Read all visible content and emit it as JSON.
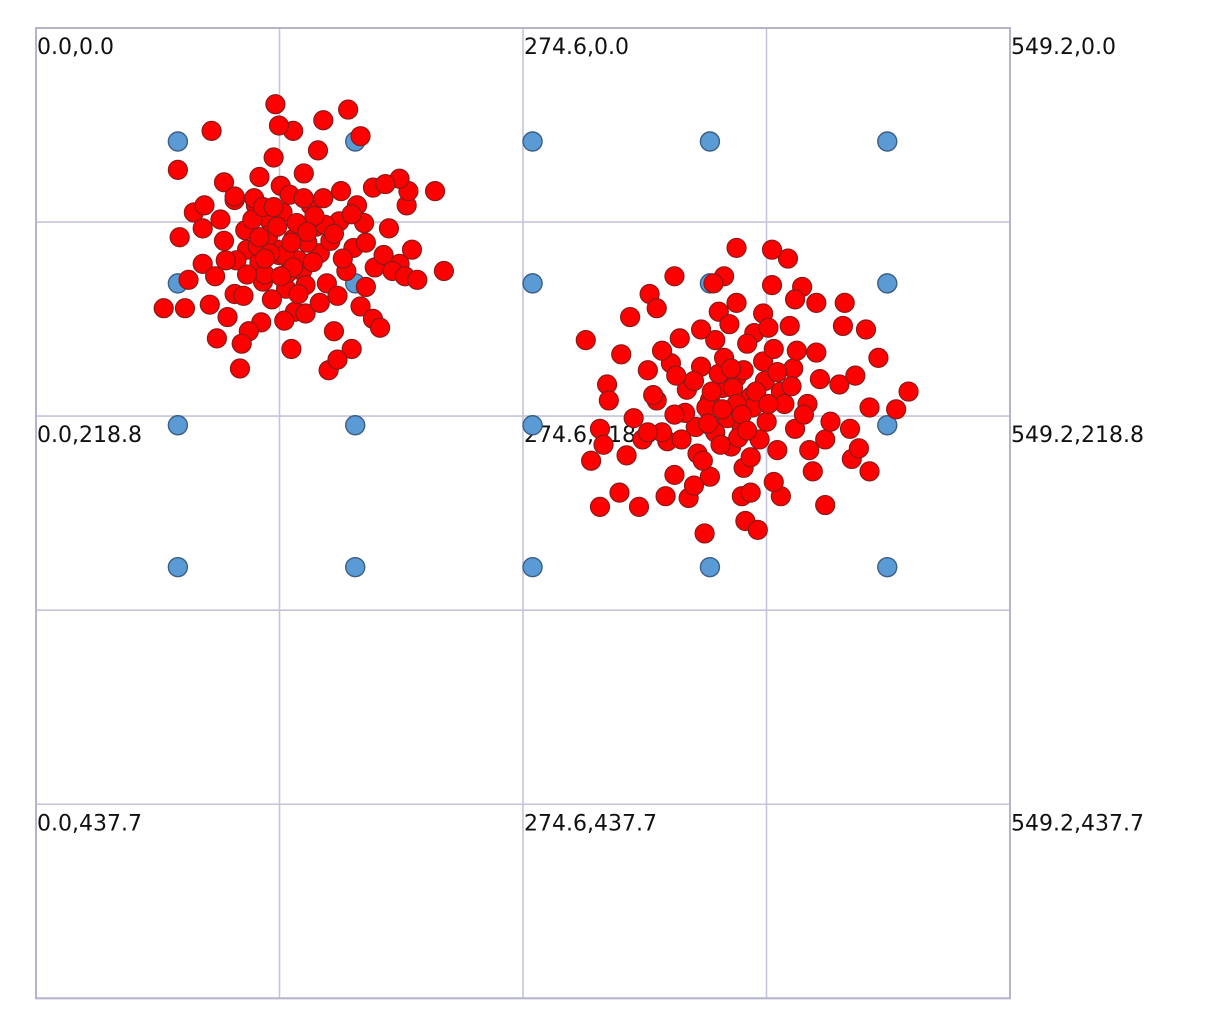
{
  "colors": {
    "background": "#ffffff",
    "grid": "#c4c4dc",
    "reference_point": "#5b9bd5",
    "sample_point": "#ff0000"
  },
  "coordinate_labels": [
    {
      "text": "0.0,0.0",
      "x": 0.0,
      "y": 0.0
    },
    {
      "text": "274.6,0.0",
      "x": 274.6,
      "y": 0.0
    },
    {
      "text": "549.2,0.0",
      "x": 549.2,
      "y": 0.0
    },
    {
      "text": "0.0,218.8",
      "x": 0.0,
      "y": 218.8
    },
    {
      "text": "274.6,218.8",
      "x": 274.6,
      "y": 218.8
    },
    {
      "text": "549.2,218.8",
      "x": 549.2,
      "y": 218.8
    },
    {
      "text": "0.0,437.7",
      "x": 0.0,
      "y": 437.7
    },
    {
      "text": "274.6,437.7",
      "x": 274.6,
      "y": 437.7
    },
    {
      "text": "549.2,437.7",
      "x": 549.2,
      "y": 437.7
    }
  ],
  "chart_data": {
    "type": "scatter",
    "title": "",
    "xlabel": "",
    "ylabel": "",
    "y_axis_direction": "down",
    "xlim": [
      0,
      549.2
    ],
    "ylim": [
      0,
      547.1
    ],
    "grid": true,
    "grid_x": [
      0,
      137.3,
      274.6,
      411.9,
      549.2
    ],
    "grid_y": [
      0,
      109.4,
      218.8,
      328.3,
      437.7,
      547.1
    ],
    "series": [
      {
        "color": "#5b9bd5",
        "points": [
          [
            80,
            64
          ],
          [
            180,
            64
          ],
          [
            280,
            64
          ],
          [
            380,
            64
          ],
          [
            480,
            64
          ],
          [
            80,
            144
          ],
          [
            180,
            144
          ],
          [
            280,
            144
          ],
          [
            380,
            144
          ],
          [
            480,
            144
          ],
          [
            80,
            224
          ],
          [
            180,
            224
          ],
          [
            280,
            224
          ],
          [
            380,
            224
          ],
          [
            480,
            224
          ],
          [
            80,
            304
          ],
          [
            180,
            304
          ],
          [
            280,
            304
          ],
          [
            380,
            304
          ],
          [
            480,
            304
          ]
        ]
      },
      {
        "color": "#ff0000",
        "points": [
          [
            137,
            128
          ],
          [
            145,
            119
          ],
          [
            132,
            109
          ],
          [
            150,
            137
          ],
          [
            124,
            100
          ],
          [
            160,
            127
          ],
          [
            141,
            147
          ],
          [
            119,
            125
          ],
          [
            171,
            109
          ],
          [
            128,
            143
          ],
          [
            155,
            100
          ],
          [
            106,
            120
          ],
          [
            146,
            160
          ],
          [
            164,
            144
          ],
          [
            94,
            133
          ],
          [
            179,
            124
          ],
          [
            138,
            89
          ],
          [
            112,
            150
          ],
          [
            172,
            92
          ],
          [
            89,
            104
          ],
          [
            191,
            135
          ],
          [
            151,
            82
          ],
          [
            127,
            166
          ],
          [
            183,
            157
          ],
          [
            98,
            156
          ],
          [
            199,
            113
          ],
          [
            134,
            73
          ],
          [
            120,
            171
          ],
          [
            168,
            171
          ],
          [
            86,
            142
          ],
          [
            205,
            133
          ],
          [
            159,
            69
          ],
          [
            106,
            87
          ],
          [
            144,
            181
          ],
          [
            190,
            90
          ],
          [
            81,
            118
          ],
          [
            212,
            125
          ],
          [
            116,
            178
          ],
          [
            178,
            181
          ],
          [
            136,
            125
          ],
          [
            148,
            131
          ],
          [
            131,
            117
          ],
          [
            153,
            121
          ],
          [
            142,
            138
          ],
          [
            126,
            132
          ],
          [
            158,
            112
          ],
          [
            139,
            104
          ],
          [
            166,
            120
          ],
          [
            118,
            114
          ],
          [
            129,
            139
          ],
          [
            147,
            110
          ],
          [
            123,
            96
          ],
          [
            104,
            108
          ],
          [
            185,
            110
          ],
          [
            162,
            96
          ],
          [
            112,
            97
          ],
          [
            186,
            146
          ],
          [
            94,
            113
          ],
          [
            196,
            128
          ],
          [
            133,
            153
          ],
          [
            175,
            137
          ],
          [
            101,
            140
          ],
          [
            113,
            131
          ],
          [
            170,
            151
          ],
          [
            152,
            145
          ],
          [
            143,
            94
          ],
          [
            125,
            123
          ],
          [
            136,
            112
          ],
          [
            156,
            132
          ],
          [
            140,
            128
          ],
          [
            132,
            127
          ],
          [
            145,
            135
          ],
          [
            163,
            111
          ],
          [
            122,
            108
          ],
          [
            108,
            163
          ],
          [
            181,
            100
          ],
          [
            126,
            84
          ],
          [
            190,
            164
          ],
          [
            95,
            100
          ],
          [
            201,
            137
          ],
          [
            145,
            58
          ],
          [
            115,
            192
          ],
          [
            165,
            193
          ],
          [
            84,
            158
          ],
          [
            209,
            100
          ],
          [
            72,
            158
          ],
          [
            135,
            43
          ],
          [
            176,
            46
          ],
          [
            162,
            52
          ],
          [
            99,
            58
          ],
          [
            170,
            187
          ],
          [
            140,
            165
          ],
          [
            102,
            175
          ],
          [
            194,
            169
          ],
          [
            112,
            95
          ],
          [
            137,
            55
          ],
          [
            183,
            61
          ],
          [
            208,
            140
          ],
          [
            152,
            161
          ],
          [
            173,
            130
          ],
          [
            210,
            92
          ],
          [
            80,
            80
          ],
          [
            230,
            137
          ],
          [
            215,
            142
          ],
          [
            205,
            85
          ],
          [
            197,
            88
          ],
          [
            225,
            92
          ],
          [
            128,
            101
          ],
          [
            151,
            96
          ],
          [
            119,
            139
          ],
          [
            138,
            140
          ],
          [
            168,
            116
          ],
          [
            107,
            131
          ],
          [
            157,
            106
          ],
          [
            178,
            105
          ],
          [
            148,
            150
          ],
          [
            126,
            118
          ],
          [
            117,
            151
          ],
          [
            134,
            101
          ],
          [
            186,
            121
          ],
          [
            160,
            155
          ],
          [
            144,
            121
          ],
          [
            129,
            130
          ],
          [
            153,
            115
          ],
          [
            387,
            203
          ],
          [
            395,
            197
          ],
          [
            380,
            210
          ],
          [
            403,
            208
          ],
          [
            375,
            191
          ],
          [
            410,
            188
          ],
          [
            390,
            220
          ],
          [
            367,
            204
          ],
          [
            420,
            205
          ],
          [
            383,
            176
          ],
          [
            398,
            226
          ],
          [
            358,
            189
          ],
          [
            412,
            222
          ],
          [
            427,
            192
          ],
          [
            372,
            225
          ],
          [
            405,
            172
          ],
          [
            350,
            210
          ],
          [
            435,
            212
          ],
          [
            392,
            236
          ],
          [
            363,
            175
          ],
          [
            418,
            238
          ],
          [
            440,
            183
          ],
          [
            345,
            193
          ],
          [
            385,
            160
          ],
          [
            428,
            226
          ],
          [
            337,
            220
          ],
          [
            373,
            240
          ],
          [
            453,
            201
          ],
          [
            410,
            161
          ],
          [
            356,
            233
          ],
          [
            445,
            232
          ],
          [
            330,
            184
          ],
          [
            399,
            248
          ],
          [
            425,
            168
          ],
          [
            342,
            232
          ],
          [
            462,
            196
          ],
          [
            380,
            253
          ],
          [
            438,
            250
          ],
          [
            322,
            201
          ],
          [
            415,
            145
          ],
          [
            360,
            252
          ],
          [
            470,
            214
          ],
          [
            333,
            241
          ],
          [
            398,
            264
          ],
          [
            455,
            168
          ],
          [
            318,
            226
          ],
          [
            388,
            140
          ],
          [
            440,
            155
          ],
          [
            346,
            150
          ],
          [
            475,
            186
          ],
          [
            355,
            264
          ],
          [
            420,
            264
          ],
          [
            310,
            176
          ],
          [
            395,
            124
          ],
          [
            460,
            243
          ],
          [
            335,
            163
          ],
          [
            368,
            265
          ],
          [
            445,
            269
          ],
          [
            313,
            244
          ],
          [
            485,
            215
          ],
          [
            400,
            278
          ],
          [
            350,
            158
          ],
          [
            432,
            146
          ],
          [
            382,
            144
          ],
          [
            468,
            170
          ],
          [
            329,
            262
          ],
          [
            470,
            250
          ],
          [
            424,
            130
          ],
          [
            340,
            270
          ],
          [
            407,
            283
          ],
          [
            377,
            285
          ],
          [
            456,
            155
          ],
          [
            318,
            270
          ],
          [
            492,
            205
          ],
          [
            385,
            195
          ],
          [
            393,
            203
          ],
          [
            378,
            214
          ],
          [
            399,
            193
          ],
          [
            404,
            214
          ],
          [
            388,
            186
          ],
          [
            411,
            199
          ],
          [
            371,
            199
          ],
          [
            396,
            231
          ],
          [
            416,
            181
          ],
          [
            366,
            217
          ],
          [
            401,
            178
          ],
          [
            426,
            202
          ],
          [
            383,
            228
          ],
          [
            361,
            196
          ],
          [
            408,
            232
          ],
          [
            433,
            218
          ],
          [
            418,
            194
          ],
          [
            375,
            170
          ],
          [
            391,
            167
          ],
          [
            353,
            228
          ],
          [
            436,
            238
          ],
          [
            403,
            242
          ],
          [
            448,
            222
          ],
          [
            360,
            218
          ],
          [
            422,
            212
          ],
          [
            376,
            244
          ],
          [
            429,
            182
          ],
          [
            364,
            232
          ],
          [
            413,
            169
          ],
          [
            395,
            212
          ],
          [
            381,
            205
          ],
          [
            398,
            218
          ],
          [
            387,
            215
          ],
          [
            406,
            205
          ],
          [
            392,
            192
          ],
          [
            379,
            223
          ],
          [
            401,
            227
          ],
          [
            413,
            212
          ],
          [
            386,
            235
          ],
          [
            353,
            182
          ],
          [
            348,
            207
          ],
          [
            416,
            256
          ],
          [
            371,
            258
          ],
          [
            442,
            198
          ],
          [
            459,
            226
          ],
          [
            323,
            210
          ],
          [
            395,
            155
          ],
          [
            464,
            237
          ],
          [
            345,
            228
          ],
          [
            415,
            125
          ],
          [
            428,
            153
          ],
          [
            320,
            235
          ],
          [
            403,
            262
          ],
          [
            360,
            140
          ]
        ]
      }
    ]
  }
}
